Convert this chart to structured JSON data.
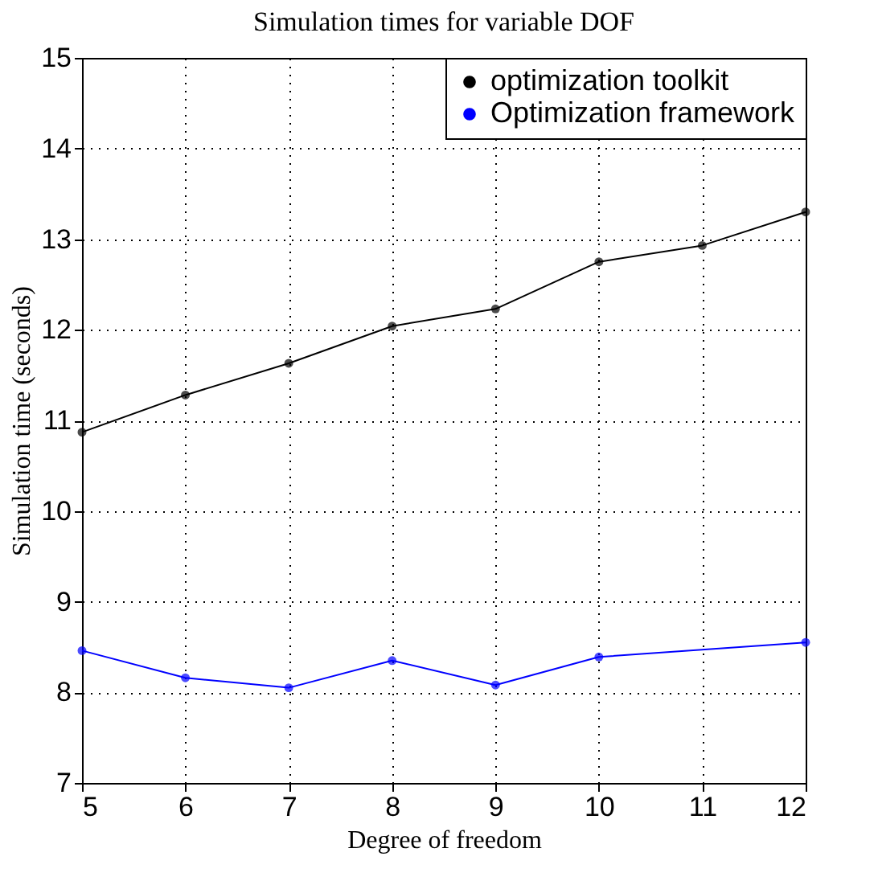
{
  "chart_data": {
    "type": "line",
    "title": "Simulation times for variable DOF",
    "xlabel": "Degree of freedom",
    "ylabel": "Simulation time (seconds)",
    "xlim": [
      5,
      12
    ],
    "xticks": [
      5,
      6,
      7,
      8,
      9,
      10,
      11,
      12
    ],
    "ylim": [
      7,
      15
    ],
    "yticks": [
      7,
      8,
      9,
      10,
      11,
      12,
      13,
      14,
      15
    ],
    "grid": true,
    "legend": "top right",
    "marker": "circle",
    "line_style": "solid",
    "series": [
      {
        "name": "optimization toolkit",
        "color": "#000000",
        "x": [
          5,
          6,
          7,
          8,
          9,
          10,
          11,
          12
        ],
        "values": [
          10.87,
          11.28,
          11.63,
          12.04,
          12.23,
          12.75,
          12.93,
          13.3
        ]
      },
      {
        "name": "Optimization framework",
        "color": "#0000ff",
        "x": [
          5,
          6,
          7,
          8,
          9,
          10,
          12
        ],
        "values": [
          8.46,
          8.16,
          8.05,
          8.35,
          8.08,
          8.39,
          8.55
        ]
      }
    ]
  }
}
